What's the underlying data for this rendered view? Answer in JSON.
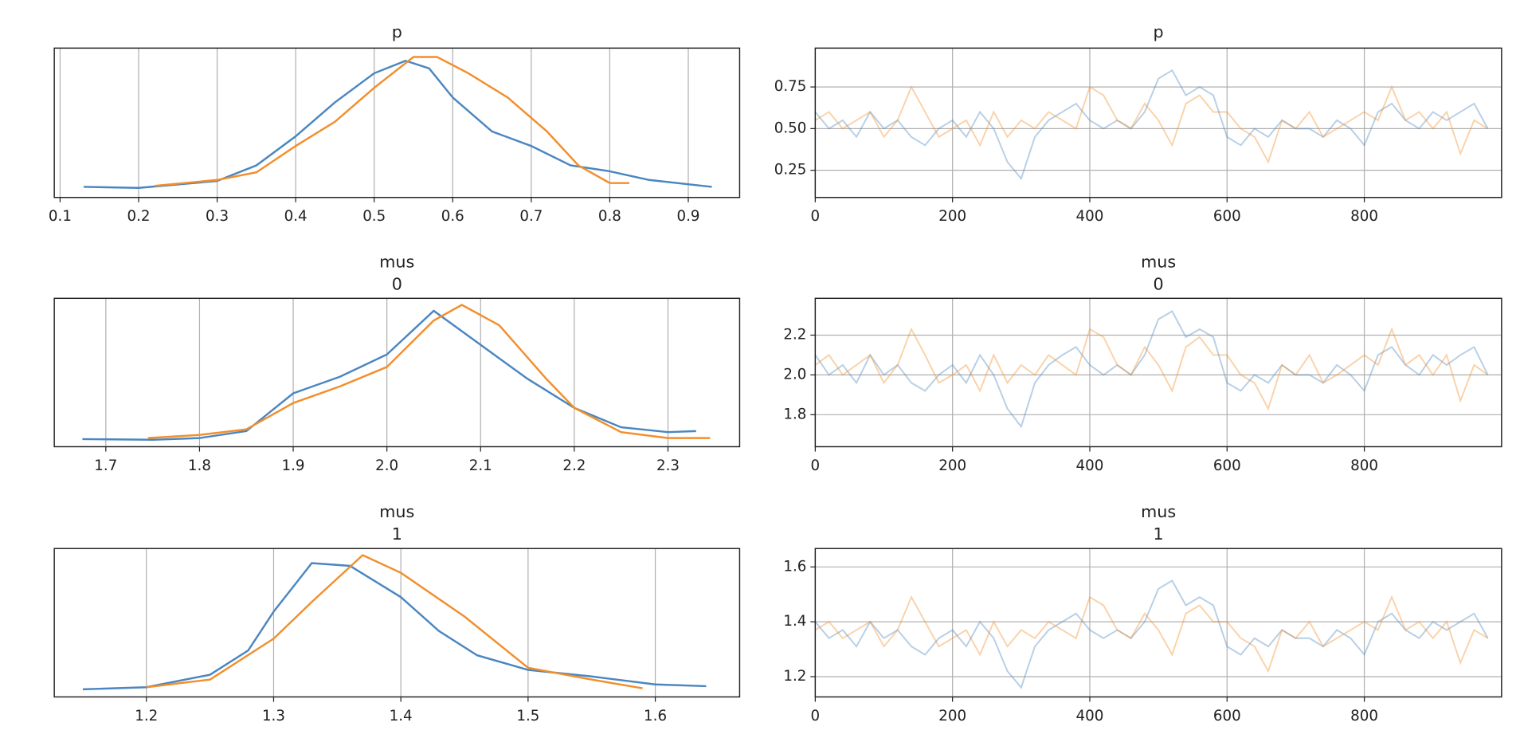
{
  "chart_data": [
    {
      "type": "line",
      "title": "p",
      "grid": "x",
      "xlim": [
        0.0926,
        0.9654
      ],
      "ylim": [
        -0.196,
        4.116
      ],
      "xticks": [
        0.1,
        0.2,
        0.3,
        0.4,
        0.5,
        0.6,
        0.7,
        0.8,
        0.9
      ],
      "series": [
        {
          "color": "#4a86c0",
          "x": [
            0.13,
            0.2,
            0.3,
            0.35,
            0.4,
            0.45,
            0.5,
            0.54,
            0.57,
            0.6,
            0.65,
            0.7,
            0.75,
            0.8,
            0.85,
            0.93
          ],
          "values": [
            0.11,
            0.08,
            0.28,
            0.73,
            1.57,
            2.55,
            3.39,
            3.75,
            3.53,
            2.69,
            1.71,
            1.29,
            0.73,
            0.56,
            0.31,
            0.11
          ]
        },
        {
          "color": "#f28e2b",
          "x": [
            0.22,
            0.3,
            0.35,
            0.4,
            0.45,
            0.5,
            0.55,
            0.58,
            0.62,
            0.67,
            0.72,
            0.76,
            0.8,
            0.825
          ],
          "values": [
            0.14,
            0.31,
            0.53,
            1.29,
            1.99,
            2.97,
            3.86,
            3.86,
            3.39,
            2.69,
            1.71,
            0.73,
            0.22,
            0.22
          ]
        }
      ]
    },
    {
      "type": "line",
      "title": "p",
      "grid": "both",
      "alpha": 0.4,
      "xlim": [
        0,
        1000
      ],
      "ylim": [
        0.087,
        0.983
      ],
      "xticks": [
        0,
        200,
        400,
        600,
        800
      ],
      "yticks": [
        {
          "value": 0.25,
          "label": "0.25"
        },
        {
          "value": 0.5,
          "label": "0.50"
        },
        {
          "value": 0.75,
          "label": "0.75"
        }
      ],
      "x": [
        0,
        20,
        40,
        60,
        80,
        100,
        120,
        140,
        160,
        180,
        200,
        220,
        240,
        260,
        280,
        300,
        320,
        340,
        360,
        380,
        400,
        420,
        440,
        460,
        480,
        500,
        520,
        540,
        560,
        580,
        600,
        620,
        640,
        660,
        680,
        700,
        720,
        740,
        760,
        780,
        800,
        820,
        840,
        860,
        880,
        900,
        920,
        940,
        960,
        980
      ],
      "series": [
        {
          "color": "#4a86c0",
          "values": [
            0.6,
            0.5,
            0.55,
            0.45,
            0.6,
            0.5,
            0.55,
            0.45,
            0.4,
            0.5,
            0.55,
            0.45,
            0.6,
            0.5,
            0.3,
            0.2,
            0.45,
            0.55,
            0.6,
            0.65,
            0.55,
            0.5,
            0.55,
            0.5,
            0.6,
            0.8,
            0.85,
            0.7,
            0.75,
            0.7,
            0.45,
            0.4,
            0.5,
            0.45,
            0.55,
            0.5,
            0.5,
            0.45,
            0.55,
            0.5,
            0.4,
            0.6,
            0.65,
            0.55,
            0.5,
            0.6,
            0.55,
            0.6,
            0.65,
            0.5
          ]
        },
        {
          "color": "#f28e2b",
          "values": [
            0.55,
            0.6,
            0.5,
            0.55,
            0.6,
            0.45,
            0.55,
            0.75,
            0.6,
            0.45,
            0.5,
            0.55,
            0.4,
            0.6,
            0.45,
            0.55,
            0.5,
            0.6,
            0.55,
            0.5,
            0.75,
            0.7,
            0.55,
            0.5,
            0.65,
            0.55,
            0.4,
            0.65,
            0.7,
            0.6,
            0.6,
            0.5,
            0.45,
            0.3,
            0.55,
            0.5,
            0.6,
            0.45,
            0.5,
            0.55,
            0.6,
            0.55,
            0.75,
            0.55,
            0.6,
            0.5,
            0.6,
            0.35,
            0.55,
            0.5
          ]
        }
      ]
    },
    {
      "type": "line",
      "title": "mus",
      "subtitle": "0",
      "grid": "x",
      "xlim": [
        1.645,
        2.3765
      ],
      "ylim": [
        -0.14,
        4.14
      ],
      "xticks": [
        1.7,
        1.8,
        1.9,
        {
          "value": 2,
          "label": "2.0"
        },
        2.1,
        2.2,
        2.3
      ],
      "series": [
        {
          "color": "#4a86c0",
          "x": [
            1.675,
            1.75,
            1.8,
            1.85,
            1.9,
            1.95,
            2.0,
            2.05,
            2.1,
            2.15,
            2.2,
            2.25,
            2.3,
            2.33
          ],
          "values": [
            0.08,
            0.06,
            0.11,
            0.31,
            1.4,
            1.88,
            2.52,
            3.78,
            2.8,
            1.82,
            0.98,
            0.42,
            0.28,
            0.31
          ]
        },
        {
          "color": "#f28e2b",
          "x": [
            1.745,
            1.8,
            1.85,
            1.9,
            1.95,
            2.0,
            2.05,
            2.08,
            2.12,
            2.17,
            2.2,
            2.25,
            2.3,
            2.345
          ],
          "values": [
            0.11,
            0.2,
            0.36,
            1.12,
            1.6,
            2.16,
            3.5,
            3.95,
            3.36,
            1.82,
            0.98,
            0.28,
            0.11,
            0.11
          ]
        }
      ]
    },
    {
      "type": "line",
      "title": "mus",
      "subtitle": "0",
      "grid": "both",
      "alpha": 0.4,
      "xlim": [
        0,
        1000
      ],
      "ylim": [
        1.639,
        2.385
      ],
      "xticks": [
        0,
        200,
        400,
        600,
        800
      ],
      "yticks": [
        1.8,
        {
          "value": 2,
          "label": "2.0"
        },
        2.2
      ],
      "x": [
        0,
        20,
        40,
        60,
        80,
        100,
        120,
        140,
        160,
        180,
        200,
        220,
        240,
        260,
        280,
        300,
        320,
        340,
        360,
        380,
        400,
        420,
        440,
        460,
        480,
        500,
        520,
        540,
        560,
        580,
        600,
        620,
        640,
        660,
        680,
        700,
        720,
        740,
        760,
        780,
        800,
        820,
        840,
        860,
        880,
        900,
        920,
        940,
        960,
        980
      ],
      "series": [
        {
          "color": "#4a86c0",
          "values": [
            2.1,
            2.0,
            2.05,
            1.96,
            2.1,
            2.0,
            2.05,
            1.96,
            1.92,
            2.0,
            2.05,
            1.96,
            2.1,
            2.0,
            1.83,
            1.74,
            1.96,
            2.05,
            2.1,
            2.14,
            2.05,
            2.0,
            2.05,
            2.0,
            2.1,
            2.28,
            2.32,
            2.19,
            2.23,
            2.19,
            1.96,
            1.92,
            2.0,
            1.96,
            2.05,
            2.0,
            2.0,
            1.96,
            2.05,
            2.0,
            1.92,
            2.1,
            2.14,
            2.05,
            2.0,
            2.1,
            2.05,
            2.1,
            2.14,
            2.0
          ]
        },
        {
          "color": "#f28e2b",
          "values": [
            2.05,
            2.1,
            2.0,
            2.05,
            2.1,
            1.96,
            2.05,
            2.23,
            2.1,
            1.96,
            2.0,
            2.05,
            1.92,
            2.1,
            1.96,
            2.05,
            2.0,
            2.1,
            2.05,
            2.0,
            2.23,
            2.19,
            2.05,
            2.0,
            2.14,
            2.05,
            1.92,
            2.14,
            2.19,
            2.1,
            2.1,
            2.0,
            1.96,
            1.83,
            2.05,
            2.0,
            2.1,
            1.96,
            2.0,
            2.05,
            2.1,
            2.05,
            2.23,
            2.05,
            2.1,
            2.0,
            2.1,
            1.87,
            2.05,
            2.0
          ]
        }
      ]
    },
    {
      "type": "line",
      "title": "mus",
      "subtitle": "1",
      "grid": "x",
      "xlim": [
        1.1276,
        1.6663
      ],
      "ylim": [
        -0.14,
        4.14
      ],
      "xticks": [
        1.2,
        1.3,
        1.4,
        1.5,
        1.6
      ],
      "series": [
        {
          "color": "#4a86c0",
          "x": [
            1.15,
            1.2,
            1.25,
            1.28,
            1.3,
            1.33,
            1.36,
            1.4,
            1.43,
            1.46,
            1.5,
            1.55,
            1.6,
            1.64
          ],
          "values": [
            0.08,
            0.14,
            0.5,
            1.2,
            2.32,
            3.72,
            3.64,
            2.74,
            1.76,
            1.06,
            0.64,
            0.45,
            0.22,
            0.17
          ]
        },
        {
          "color": "#f28e2b",
          "x": [
            1.2,
            1.25,
            1.3,
            1.33,
            1.37,
            1.4,
            1.45,
            1.5,
            1.55,
            1.59
          ],
          "values": [
            0.14,
            0.36,
            1.54,
            2.6,
            3.95,
            3.44,
            2.18,
            0.7,
            0.36,
            0.11
          ]
        }
      ]
    },
    {
      "type": "line",
      "title": "mus",
      "subtitle": "1",
      "grid": "both",
      "alpha": 0.4,
      "xlim": [
        0,
        1000
      ],
      "ylim": [
        1.126,
        1.667
      ],
      "xticks": [
        0,
        200,
        400,
        600,
        800
      ],
      "yticks": [
        1.2,
        1.4,
        1.6
      ],
      "x": [
        0,
        20,
        40,
        60,
        80,
        100,
        120,
        140,
        160,
        180,
        200,
        220,
        240,
        260,
        280,
        300,
        320,
        340,
        360,
        380,
        400,
        420,
        440,
        460,
        480,
        500,
        520,
        540,
        560,
        580,
        600,
        620,
        640,
        660,
        680,
        700,
        720,
        740,
        760,
        780,
        800,
        820,
        840,
        860,
        880,
        900,
        920,
        940,
        960,
        980
      ],
      "series": [
        {
          "color": "#4a86c0",
          "values": [
            1.4,
            1.34,
            1.37,
            1.31,
            1.4,
            1.34,
            1.37,
            1.31,
            1.28,
            1.34,
            1.37,
            1.31,
            1.4,
            1.34,
            1.22,
            1.16,
            1.31,
            1.37,
            1.4,
            1.43,
            1.37,
            1.34,
            1.37,
            1.34,
            1.4,
            1.52,
            1.55,
            1.46,
            1.49,
            1.46,
            1.31,
            1.28,
            1.34,
            1.31,
            1.37,
            1.34,
            1.34,
            1.31,
            1.37,
            1.34,
            1.28,
            1.4,
            1.43,
            1.37,
            1.34,
            1.4,
            1.37,
            1.4,
            1.43,
            1.34
          ]
        },
        {
          "color": "#f28e2b",
          "values": [
            1.37,
            1.4,
            1.34,
            1.37,
            1.4,
            1.31,
            1.37,
            1.49,
            1.4,
            1.31,
            1.34,
            1.37,
            1.28,
            1.4,
            1.31,
            1.37,
            1.34,
            1.4,
            1.37,
            1.34,
            1.49,
            1.46,
            1.37,
            1.34,
            1.43,
            1.37,
            1.28,
            1.43,
            1.46,
            1.4,
            1.4,
            1.34,
            1.31,
            1.22,
            1.37,
            1.34,
            1.4,
            1.31,
            1.34,
            1.37,
            1.4,
            1.37,
            1.49,
            1.37,
            1.4,
            1.34,
            1.4,
            1.25,
            1.37,
            1.34
          ]
        }
      ]
    }
  ]
}
